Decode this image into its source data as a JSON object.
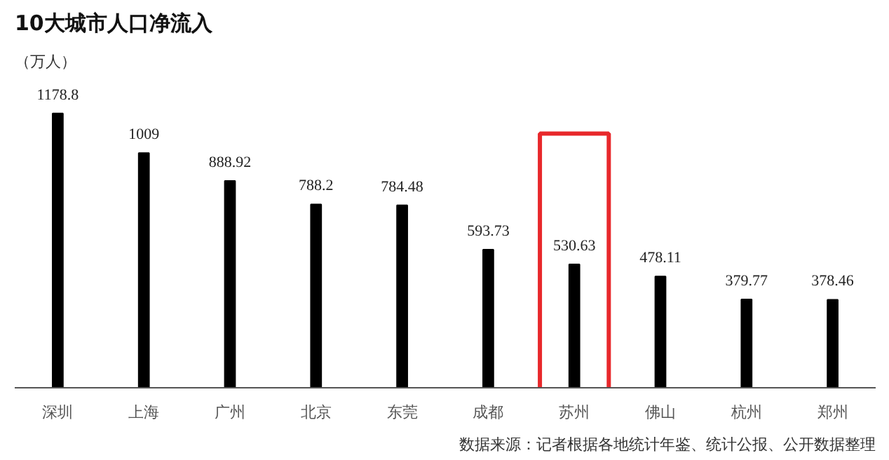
{
  "chart_data": {
    "type": "bar",
    "title": "10大城市人口净流入",
    "ylabel": "（万人）",
    "categories": [
      "深圳",
      "上海",
      "广州",
      "北京",
      "东莞",
      "成都",
      "苏州",
      "佛山",
      "杭州",
      "郑州"
    ],
    "values": [
      1178.8,
      1009,
      888.92,
      788.2,
      784.48,
      593.73,
      530.63,
      478.11,
      379.77,
      378.46
    ],
    "color": "#000000",
    "data_labels": true,
    "grid": false,
    "annotations": [
      "数据来源：记者根据各地统计年鉴、统计公报、公开数据整理"
    ]
  }
}
